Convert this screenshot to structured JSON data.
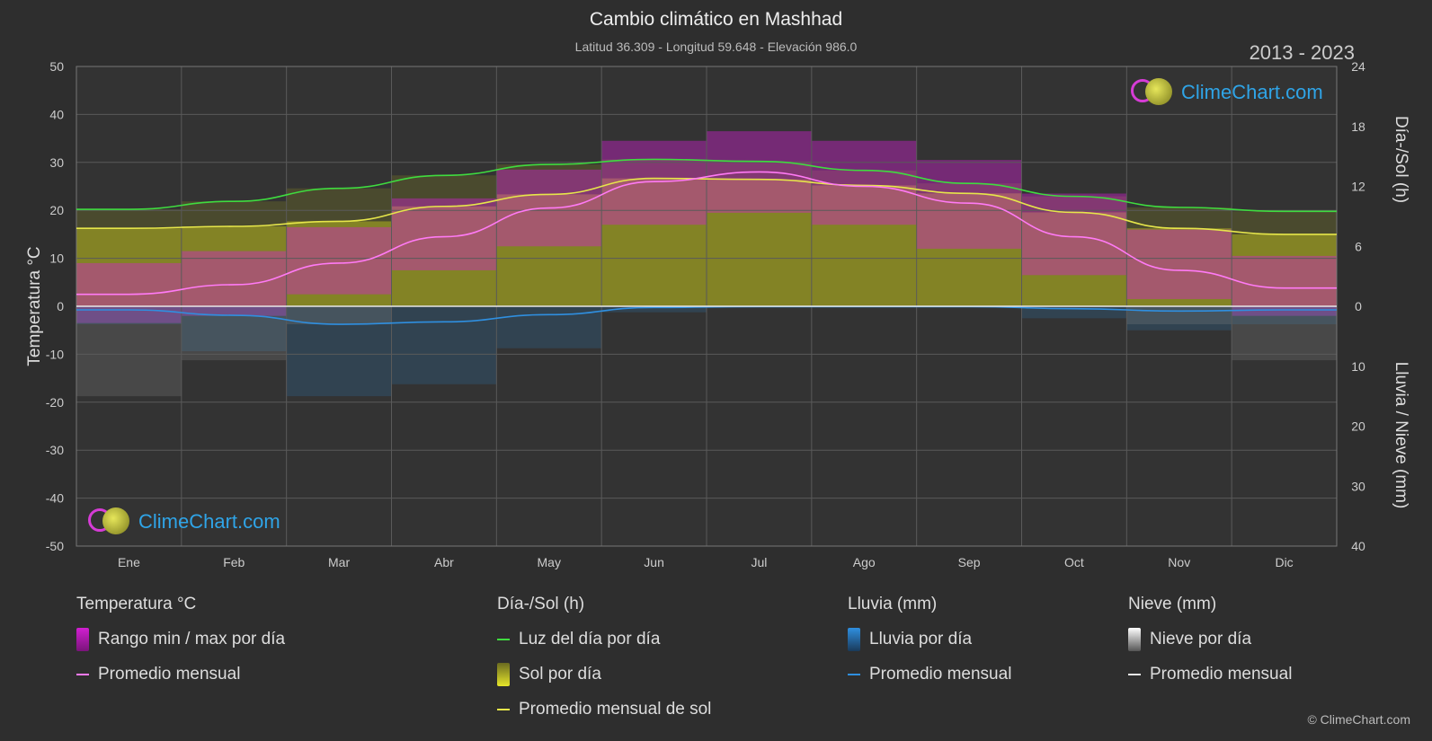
{
  "header": {
    "title": "Cambio climático en Mashhad",
    "subtitle": "Latitud 36.309 - Longitud 59.648 - Elevación 986.0",
    "years": "2013 - 2023"
  },
  "logo": {
    "text": "ClimeChart.com"
  },
  "copyright": "© ClimeChart.com",
  "colors": {
    "background": "#2e2e2e",
    "temp_range": "#d11fd1",
    "temp_avg": "#ff7af5",
    "daylight": "#3fdc3f",
    "sunshine_fill": "#b3b31f",
    "sunshine_avg": "#e6e64a",
    "rain": "#2f8fe0",
    "snow": "#e8e8e8"
  },
  "chart_data": {
    "type": "line",
    "categories": [
      "Ene",
      "Feb",
      "Mar",
      "Abr",
      "May",
      "Jun",
      "Jul",
      "Ago",
      "Sep",
      "Oct",
      "Nov",
      "Dic"
    ],
    "left_axis": {
      "label": "Temperatura °C",
      "min": -50,
      "max": 50,
      "ticks": [
        50,
        40,
        30,
        20,
        10,
        0,
        -10,
        -20,
        -30,
        -40,
        -50
      ]
    },
    "right_axis_top": {
      "label": "Día-/Sol (h)",
      "min": 0,
      "max": 24,
      "ticks": [
        24,
        18,
        12,
        6,
        0
      ]
    },
    "right_axis_bottom": {
      "label": "Lluvia / Nieve (mm)",
      "min": 0,
      "max": 40,
      "ticks": [
        10,
        20,
        30,
        40
      ]
    },
    "grid": true,
    "series": [
      {
        "name": "Luz del día por día",
        "axis": "sun_h",
        "values": [
          9.7,
          10.5,
          11.8,
          13.1,
          14.2,
          14.7,
          14.5,
          13.6,
          12.3,
          11.0,
          9.9,
          9.5
        ]
      },
      {
        "name": "Promedio mensual de sol",
        "axis": "sun_h",
        "values": [
          7.8,
          8.0,
          8.5,
          10.0,
          11.2,
          12.8,
          12.7,
          12.1,
          11.3,
          9.4,
          7.8,
          7.2
        ]
      },
      {
        "name": "Promedio mensual",
        "group": "Temperatura °C",
        "axis": "temp_c",
        "values": [
          2.5,
          4.5,
          9.0,
          14.5,
          20.5,
          26.0,
          28.0,
          25.0,
          21.5,
          14.5,
          7.5,
          3.8
        ]
      },
      {
        "name": "Temperatura máx. media (rango)",
        "axis": "temp_c",
        "values": [
          9.0,
          11.5,
          16.5,
          22.5,
          28.5,
          34.5,
          36.5,
          34.5,
          30.5,
          23.5,
          16.0,
          10.5
        ]
      },
      {
        "name": "Temperatura mín. media (rango)",
        "axis": "temp_c",
        "values": [
          -3.5,
          -2.0,
          2.5,
          7.5,
          12.5,
          17.0,
          19.5,
          17.0,
          12.0,
          6.5,
          1.5,
          -2.0
        ]
      },
      {
        "name": "Promedio mensual",
        "group": "Lluvia (mm)",
        "axis": "precip_mm",
        "values": [
          0.6,
          1.5,
          3.0,
          2.6,
          1.4,
          0.2,
          0.05,
          0.05,
          0.05,
          0.4,
          0.8,
          0.6
        ]
      },
      {
        "name": "Promedio mensual",
        "group": "Nieve (mm)",
        "axis": "precip_mm",
        "values": [
          0.5,
          0.3,
          0.1,
          0,
          0,
          0,
          0,
          0,
          0,
          0,
          0.1,
          0.3
        ]
      }
    ]
  },
  "legend": {
    "groups": [
      {
        "title": "Temperatura °C",
        "items": [
          {
            "label": "Rango min / max por día",
            "swatch": "box",
            "color": "#d11fd1"
          },
          {
            "label": "Promedio mensual",
            "swatch": "line",
            "color": "#ff7af5"
          }
        ]
      },
      {
        "title": "Día-/Sol (h)",
        "items": [
          {
            "label": "Luz del día por día",
            "swatch": "line",
            "color": "#3fdc3f"
          },
          {
            "label": "Sol por día",
            "swatch": "box",
            "color": "#b3b31f"
          },
          {
            "label": "Promedio mensual de sol",
            "swatch": "line",
            "color": "#e6e64a"
          }
        ]
      },
      {
        "title": "Lluvia (mm)",
        "items": [
          {
            "label": "Lluvia por día",
            "swatch": "box",
            "color": "#2f8fe0"
          },
          {
            "label": "Promedio mensual",
            "swatch": "line",
            "color": "#2f8fe0"
          }
        ]
      },
      {
        "title": "Nieve (mm)",
        "items": [
          {
            "label": "Nieve por día",
            "swatch": "box",
            "color": "#e8e8e8"
          },
          {
            "label": "Promedio mensual",
            "swatch": "line",
            "color": "#e8e8e8"
          }
        ]
      }
    ]
  }
}
